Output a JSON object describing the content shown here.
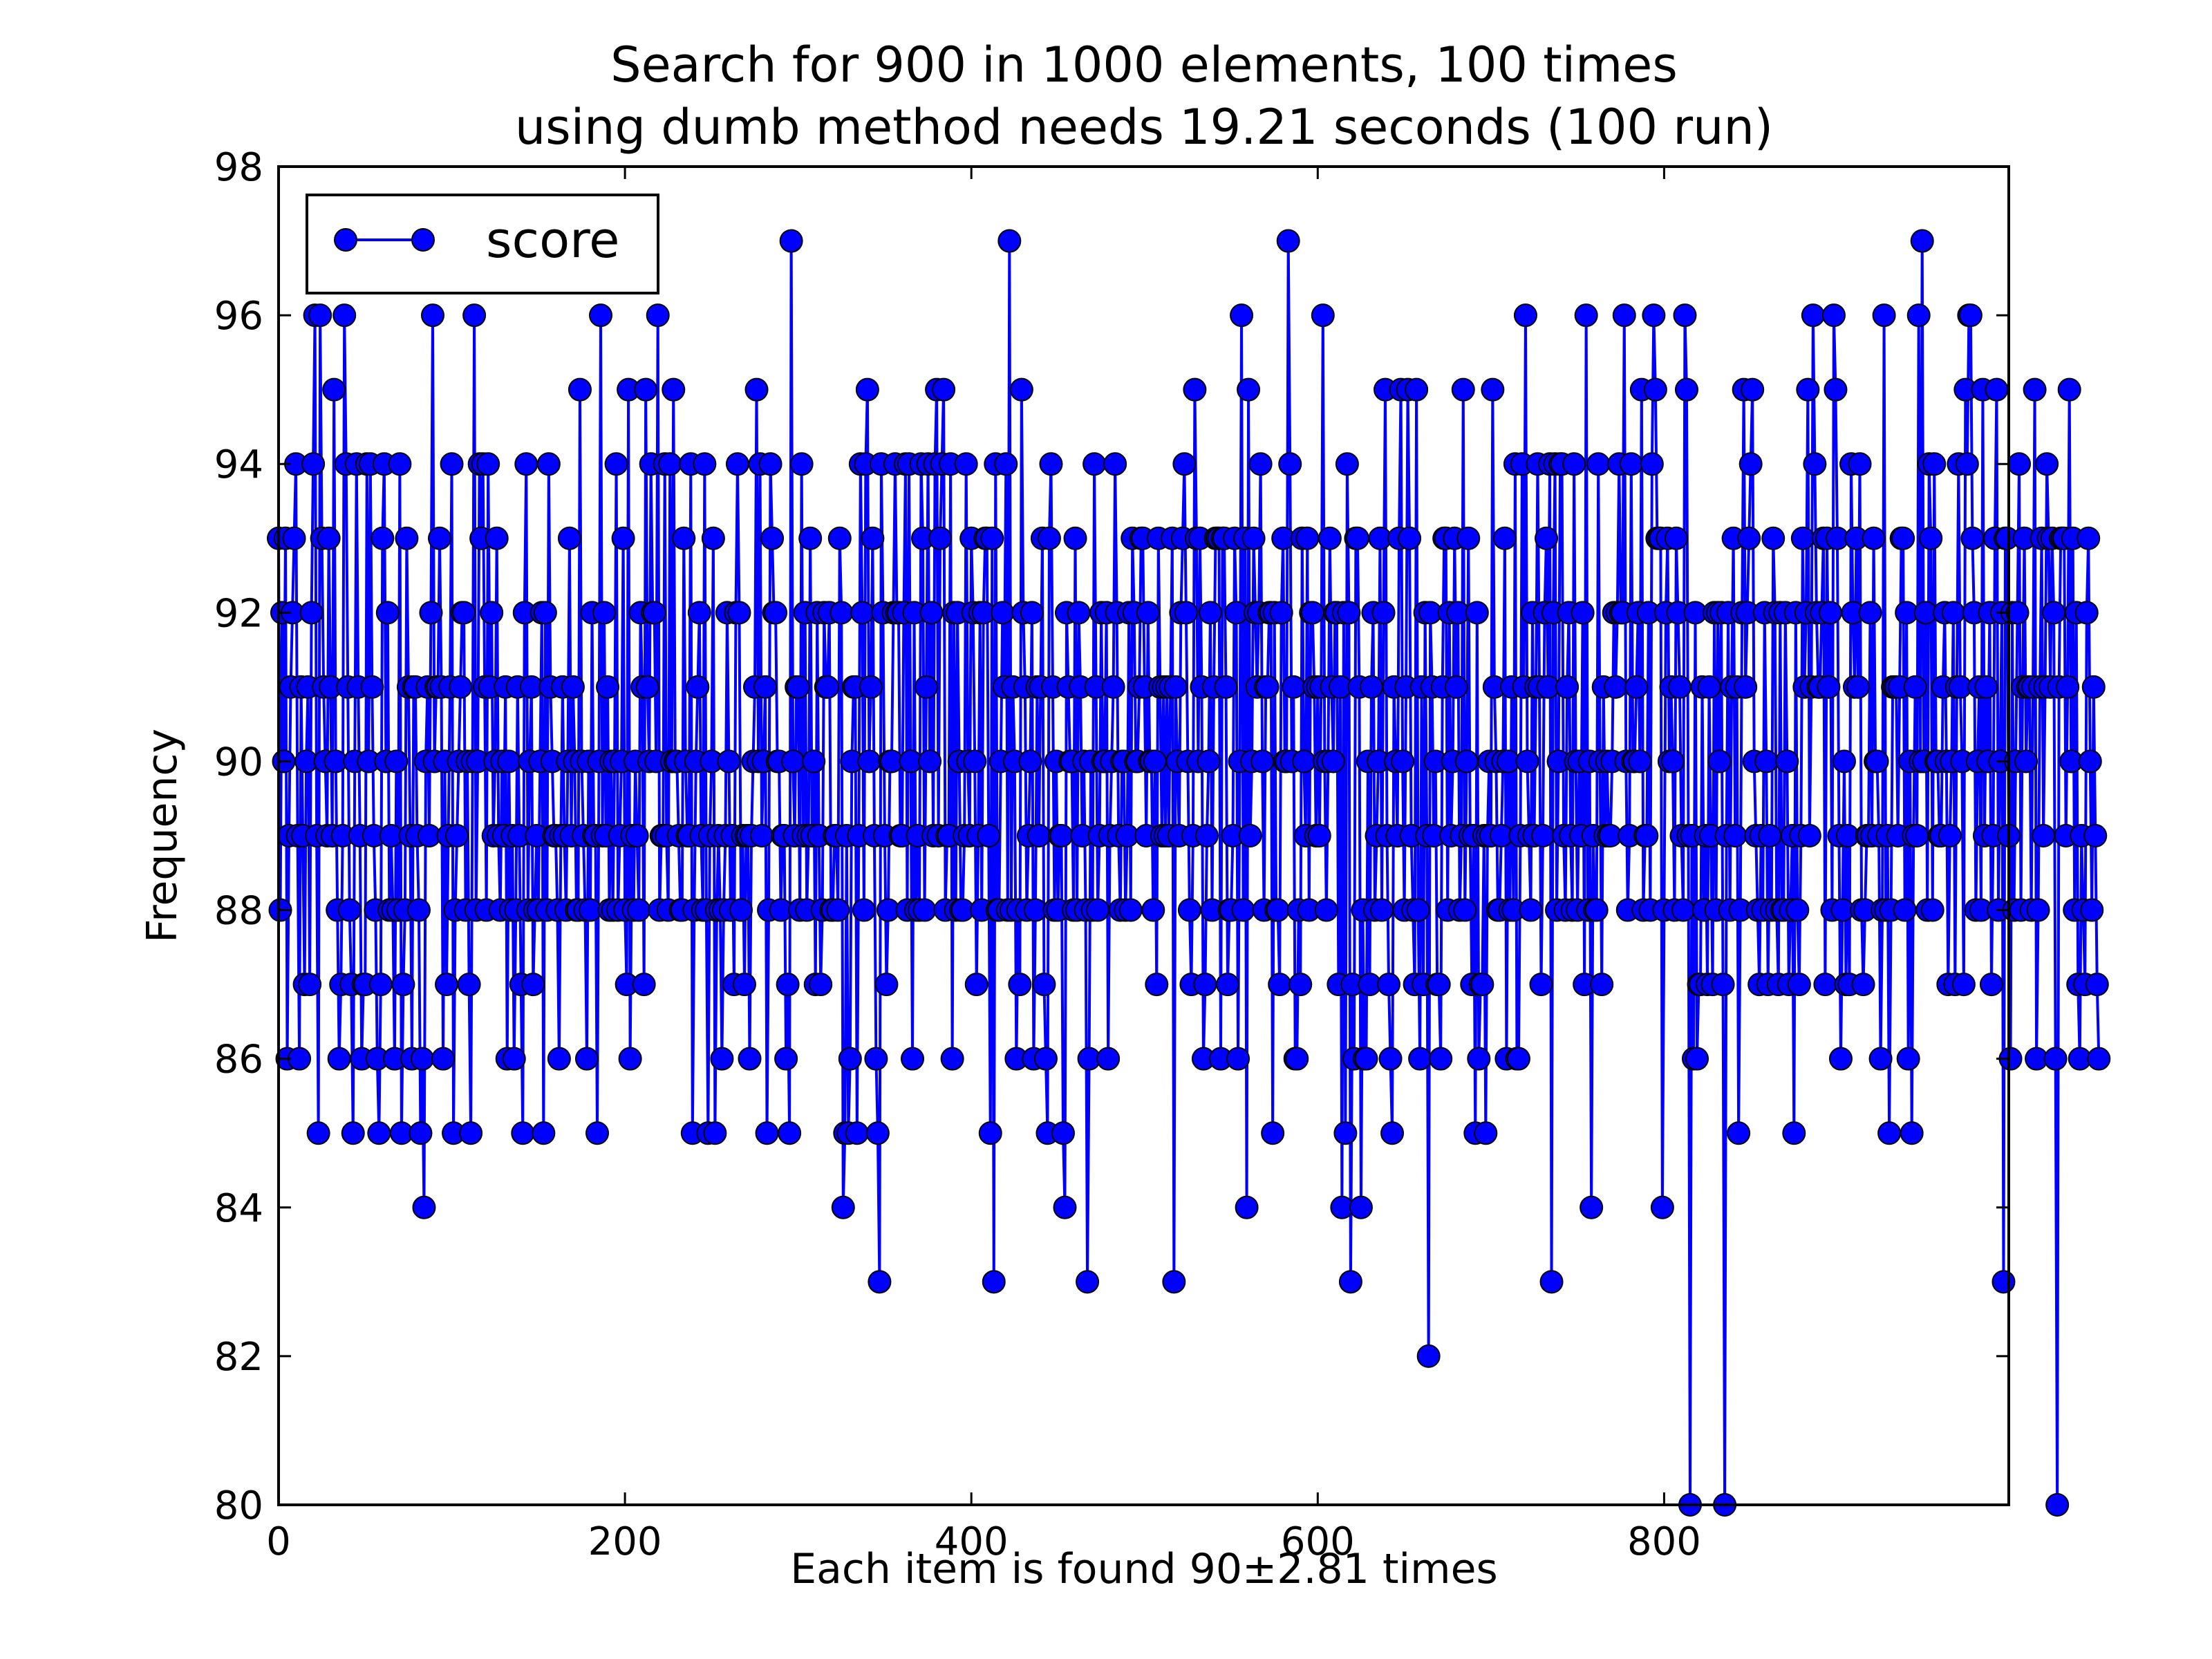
{
  "chart_data": {
    "type": "line",
    "title_line1": "Search for 900 in 1000 elements, 100 times",
    "title_line2": "using dumb method needs 19.21 seconds (100 run)",
    "xlabel": "Each item is found 90±2.81 times",
    "ylabel": "Frequency",
    "xlim": [
      0,
      999
    ],
    "ylim": [
      80,
      98
    ],
    "xticks": [
      0,
      200,
      400,
      600,
      800
    ],
    "yticks": [
      80,
      82,
      84,
      86,
      88,
      90,
      92,
      94,
      96,
      98
    ],
    "xtick_labels": [
      "0",
      "200",
      "400",
      "600",
      "800"
    ],
    "ytick_labels": [
      "80",
      "82",
      "84",
      "86",
      "88",
      "90",
      "92",
      "94",
      "96",
      "98"
    ],
    "grid": false,
    "legend": {
      "position": "top-left",
      "label": "score"
    },
    "series": [
      {
        "name": "score",
        "color": "#0000ff",
        "marker": "circle",
        "y": [
          93,
          88,
          92,
          90,
          93,
          86,
          89,
          91,
          92,
          93,
          94,
          89,
          86,
          91,
          89,
          87,
          90,
          91,
          87,
          92,
          94,
          96,
          89,
          85,
          96,
          93,
          91,
          90,
          89,
          93,
          91,
          89,
          95,
          90,
          88,
          86,
          87,
          89,
          96,
          94,
          91,
          88,
          87,
          85,
          90,
          94,
          91,
          89,
          86,
          87,
          87,
          94,
          90,
          94,
          91,
          89,
          88,
          86,
          85,
          87,
          93,
          94,
          90,
          92,
          88,
          89,
          88,
          86,
          90,
          88,
          94,
          85,
          87,
          88,
          93,
          91,
          89,
          86,
          91,
          91,
          89,
          88,
          85,
          86,
          84,
          90,
          91,
          89,
          92,
          96,
          90,
          91,
          91,
          93,
          91,
          86,
          90,
          87,
          89,
          91,
          94,
          85,
          88,
          89,
          90,
          91,
          92,
          92,
          88,
          90,
          87,
          85,
          90,
          96,
          88,
          90,
          94,
          93,
          94,
          91,
          88,
          94,
          91,
          92,
          89,
          90,
          93,
          89,
          88,
          90,
          89,
          91,
          86,
          90,
          88,
          89,
          86,
          88,
          91,
          89,
          87,
          85,
          92,
          94,
          88,
          90,
          91,
          87,
          88,
          89,
          88,
          90,
          92,
          85,
          92,
          88,
          94,
          91,
          90,
          89,
          89,
          88,
          86,
          89,
          91,
          89,
          88,
          90,
          93,
          89,
          91,
          90,
          88,
          88,
          95,
          90,
          89,
          88,
          86,
          90,
          88,
          92,
          89,
          89,
          85,
          90,
          96,
          89,
          92,
          89,
          91,
          88,
          90,
          88,
          90,
          94,
          88,
          89,
          90,
          93,
          88,
          87,
          95,
          86,
          89,
          88,
          90,
          89,
          88,
          92,
          91,
          87,
          95,
          91,
          90,
          94,
          92,
          92,
          90,
          96,
          88,
          89,
          89,
          94,
          89,
          88,
          94,
          90,
          95,
          90,
          90,
          89,
          88,
          88,
          93,
          90,
          89,
          89,
          94,
          85,
          88,
          90,
          91,
          92,
          89,
          88,
          94,
          88,
          85,
          89,
          90,
          93,
          85,
          88,
          89,
          88,
          86,
          88,
          89,
          92,
          90,
          88,
          89,
          87,
          92,
          94,
          92,
          88,
          89,
          87,
          89,
          89,
          86,
          89,
          90,
          91,
          95,
          90,
          94,
          89,
          90,
          91,
          85,
          88,
          94,
          93,
          92,
          92,
          90,
          90,
          88,
          89,
          89,
          86,
          87,
          85,
          97,
          90,
          89,
          91,
          91,
          88,
          94,
          89,
          92,
          88,
          89,
          93,
          89,
          90,
          87,
          92,
          89,
          87,
          88,
          92,
          91,
          91,
          92,
          88,
          88,
          89,
          89,
          88,
          93,
          92,
          84,
          85,
          89,
          85,
          86,
          90,
          91,
          91,
          85,
          89,
          94,
          92,
          88,
          94,
          95,
          90,
          91,
          93,
          89,
          86,
          85,
          83,
          94,
          92,
          89,
          87,
          88,
          90,
          90,
          92,
          94,
          92,
          92,
          89,
          89,
          92,
          94,
          88,
          94,
          90,
          86,
          92,
          88,
          89,
          88,
          94,
          93,
          88,
          91,
          94,
          90,
          92,
          89,
          94,
          95,
          89,
          93,
          94,
          95,
          88,
          89,
          89,
          94,
          86,
          92,
          88,
          92,
          90,
          88,
          88,
          89,
          94,
          90,
          89,
          93,
          92,
          90,
          87,
          89,
          92,
          88,
          92,
          93,
          93,
          89,
          85,
          93,
          83,
          94,
          88,
          88,
          90,
          92,
          91,
          94,
          88,
          97,
          88,
          91,
          90,
          86,
          88,
          87,
          95,
          92,
          91,
          88,
          89,
          90,
          92,
          86,
          88,
          91,
          89,
          91,
          93,
          87,
          86,
          85,
          93,
          94,
          91,
          88,
          90,
          88,
          89,
          89,
          85,
          84,
          92,
          91,
          90,
          90,
          88,
          93,
          88,
          92,
          91,
          89,
          90,
          88,
          83,
          86,
          90,
          88,
          94,
          91,
          88,
          89,
          92,
          90,
          90,
          92,
          86,
          89,
          90,
          91,
          94,
          92,
          89,
          88,
          90,
          90,
          88,
          89,
          92,
          88,
          93,
          92,
          90,
          90,
          91,
          93,
          93,
          91,
          89,
          92,
          90,
          90,
          88,
          90,
          87,
          93,
          91,
          89,
          91,
          89,
          91,
          89,
          91,
          93,
          83,
          91,
          90,
          89,
          92,
          93,
          94,
          92,
          90,
          88,
          87,
          89,
          95,
          93,
          90,
          93,
          91,
          86,
          87,
          89,
          90,
          92,
          88,
          91,
          93,
          93,
          93,
          86,
          93,
          93,
          91,
          87,
          88,
          88,
          89,
          93,
          92,
          86,
          90,
          96,
          88,
          93,
          84,
          95,
          89,
          90,
          93,
          92,
          91,
          92,
          94,
          90,
          88,
          91,
          91,
          92,
          92,
          85,
          92,
          88,
          88,
          87,
          92,
          93,
          90,
          90,
          97,
          94,
          90,
          91,
          86,
          86,
          88,
          87,
          93,
          90,
          89,
          93,
          88,
          92,
          92,
          91,
          89,
          91,
          89,
          91,
          96,
          90,
          88,
          90,
          93,
          91,
          90,
          92,
          92,
          87,
          91,
          84,
          92,
          85,
          94,
          92,
          83,
          87,
          86,
          93,
          93,
          91,
          84,
          88,
          86,
          86,
          90,
          87,
          91,
          92,
          88,
          89,
          90,
          93,
          88,
          92,
          95,
          89,
          87,
          86,
          85,
          91,
          90,
          89,
          93,
          95,
          90,
          88,
          91,
          95,
          93,
          89,
          88,
          87,
          95,
          88,
          86,
          91,
          87,
          92,
          89,
          82,
          92,
          91,
          89,
          90,
          87,
          87,
          86,
          91,
          93,
          93,
          88,
          92,
          89,
          90,
          93,
          91,
          92,
          88,
          89,
          95,
          88,
          90,
          93,
          89,
          87,
          89,
          85,
          92,
          86,
          87,
          87,
          89,
          85,
          89,
          90,
          89,
          95,
          91,
          90,
          88,
          88,
          89,
          90,
          93,
          86,
          90,
          88,
          91,
          88,
          94,
          86,
          86,
          89,
          94,
          91,
          96,
          90,
          89,
          88,
          92,
          89,
          91,
          94,
          91,
          87,
          89,
          92,
          93,
          91,
          94,
          83,
          92,
          94,
          88,
          90,
          94,
          94,
          89,
          88,
          91,
          92,
          89,
          88,
          94,
          90,
          88,
          90,
          89,
          92,
          87,
          96,
          88,
          90,
          84,
          89,
          88,
          88,
          94,
          90,
          87,
          91,
          89,
          90,
          89,
          89,
          90,
          92,
          91,
          92,
          94,
          92,
          92,
          96,
          90,
          88,
          89,
          94,
          90,
          90,
          91,
          92,
          90,
          95,
          88,
          89,
          89,
          92,
          88,
          94,
          96,
          95,
          93,
          93,
          93,
          84,
          88,
          92,
          93,
          90,
          91,
          90,
          88,
          93,
          92,
          91,
          89,
          88,
          96,
          95,
          89,
          80,
          89,
          86,
          92,
          86,
          87,
          87,
          91,
          88,
          89,
          87,
          91,
          89,
          87,
          92,
          88,
          92,
          90,
          92,
          87,
          80,
          89,
          92,
          88,
          91,
          93,
          89,
          91,
          85,
          88,
          92,
          95,
          91,
          92,
          93,
          94,
          95,
          90,
          89,
          88,
          87,
          89,
          88,
          92,
          90,
          87,
          89,
          88,
          93,
          92,
          88,
          87,
          92,
          88,
          88,
          92,
          90,
          87,
          88,
          89,
          85,
          92,
          88,
          87,
          89,
          93,
          91,
          92,
          95,
          89,
          91,
          96,
          94,
          92,
          91,
          91,
          92,
          93,
          87,
          93,
          91,
          92,
          88,
          96,
          95,
          93,
          89,
          86,
          88,
          90,
          87,
          89,
          87,
          94,
          92,
          91,
          93,
          91,
          94,
          88,
          87,
          88,
          89,
          89,
          92,
          89,
          93,
          90,
          90,
          89,
          86,
          88,
          96,
          88,
          89,
          85,
          88,
          91,
          91,
          91,
          89,
          91,
          93,
          93,
          88,
          92,
          86,
          90,
          85,
          89,
          91,
          89,
          96,
          90,
          97,
          90,
          92,
          88,
          94,
          93,
          88,
          94,
          90,
          90,
          89,
          89,
          91,
          92,
          90,
          87,
          89,
          90,
          92,
          87,
          91,
          94,
          91,
          90,
          87,
          95,
          94,
          96,
          96,
          93,
          92,
          88,
          90,
          91,
          88,
          95,
          89,
          91,
          90,
          92,
          87,
          89,
          93,
          95,
          88,
          90,
          92,
          83,
          93,
          93,
          89,
          86,
          92,
          88,
          90,
          92,
          94,
          88,
          91,
          93,
          90,
          91,
          91,
          88,
          91,
          95,
          86,
          88,
          91,
          93,
          89,
          91,
          94,
          93,
          91,
          93,
          92,
          86,
          80,
          91,
          93,
          93,
          93,
          89,
          91,
          95,
          90,
          93,
          88,
          92,
          87,
          86,
          89,
          88,
          87,
          92,
          93,
          90,
          88,
          91,
          89,
          87,
          86
        ]
      }
    ]
  }
}
